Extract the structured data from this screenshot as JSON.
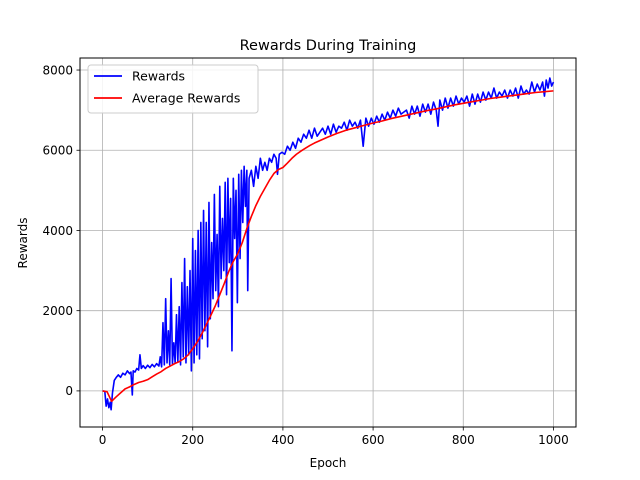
{
  "chart_data": {
    "type": "line",
    "title": "Rewards During Training",
    "xlabel": "Epoch",
    "ylabel": "Rewards",
    "xlim": [
      -50,
      1050
    ],
    "ylim": [
      -900,
      8300
    ],
    "xticks": [
      0,
      200,
      400,
      600,
      800,
      1000
    ],
    "yticks": [
      0,
      2000,
      4000,
      6000,
      8000
    ],
    "grid": true,
    "legend_position": "top-left",
    "series": [
      {
        "name": "Rewards",
        "color": "#0000ff",
        "points": [
          [
            0,
            0
          ],
          [
            5,
            -10
          ],
          [
            8,
            -380
          ],
          [
            11,
            -200
          ],
          [
            14,
            -420
          ],
          [
            17,
            -280
          ],
          [
            19,
            -470
          ],
          [
            22,
            -50
          ],
          [
            26,
            260
          ],
          [
            30,
            330
          ],
          [
            35,
            400
          ],
          [
            40,
            340
          ],
          [
            45,
            440
          ],
          [
            50,
            400
          ],
          [
            55,
            500
          ],
          [
            60,
            430
          ],
          [
            63,
            470
          ],
          [
            66,
            -100
          ],
          [
            68,
            500
          ],
          [
            72,
            470
          ],
          [
            76,
            560
          ],
          [
            80,
            520
          ],
          [
            83,
            900
          ],
          [
            86,
            560
          ],
          [
            90,
            630
          ],
          [
            95,
            560
          ],
          [
            100,
            640
          ],
          [
            105,
            580
          ],
          [
            110,
            660
          ],
          [
            115,
            600
          ],
          [
            120,
            680
          ],
          [
            125,
            620
          ],
          [
            128,
            850
          ],
          [
            131,
            600
          ],
          [
            134,
            1700
          ],
          [
            137,
            650
          ],
          [
            140,
            2300
          ],
          [
            143,
            700
          ],
          [
            146,
            1500
          ],
          [
            149,
            650
          ],
          [
            152,
            2800
          ],
          [
            155,
            680
          ],
          [
            158,
            1200
          ],
          [
            161,
            700
          ],
          [
            164,
            1900
          ],
          [
            167,
            720
          ],
          [
            170,
            2100
          ],
          [
            173,
            650
          ],
          [
            176,
            2700
          ],
          [
            179,
            850
          ],
          [
            182,
            3300
          ],
          [
            185,
            700
          ],
          [
            188,
            2600
          ],
          [
            191,
            900
          ],
          [
            194,
            3000
          ],
          [
            197,
            500
          ],
          [
            200,
            3800
          ],
          [
            203,
            700
          ],
          [
            206,
            3500
          ],
          [
            209,
            900
          ],
          [
            212,
            4000
          ],
          [
            215,
            800
          ],
          [
            218,
            4200
          ],
          [
            221,
            1300
          ],
          [
            224,
            4500
          ],
          [
            227,
            1500
          ],
          [
            230,
            4200
          ],
          [
            233,
            1100
          ],
          [
            236,
            4700
          ],
          [
            239,
            1800
          ],
          [
            242,
            3700
          ],
          [
            245,
            2300
          ],
          [
            248,
            4900
          ],
          [
            251,
            2500
          ],
          [
            254,
            3900
          ],
          [
            257,
            2100
          ],
          [
            260,
            5100
          ],
          [
            263,
            2800
          ],
          [
            266,
            4300
          ],
          [
            269,
            3000
          ],
          [
            272,
            5200
          ],
          [
            275,
            2400
          ],
          [
            278,
            5300
          ],
          [
            281,
            3200
          ],
          [
            284,
            4800
          ],
          [
            287,
            1000
          ],
          [
            290,
            5300
          ],
          [
            293,
            3800
          ],
          [
            296,
            5000
          ],
          [
            299,
            2200
          ],
          [
            302,
            5400
          ],
          [
            305,
            3300
          ],
          [
            308,
            5500
          ],
          [
            311,
            4200
          ],
          [
            314,
            5600
          ],
          [
            317,
            4600
          ],
          [
            320,
            5500
          ],
          [
            322,
            2500
          ],
          [
            325,
            5300
          ],
          [
            330,
            5500
          ],
          [
            335,
            5100
          ],
          [
            340,
            5600
          ],
          [
            345,
            5300
          ],
          [
            350,
            5800
          ],
          [
            355,
            5500
          ],
          [
            360,
            5700
          ],
          [
            365,
            5500
          ],
          [
            370,
            5800
          ],
          [
            375,
            5700
          ],
          [
            380,
            5900
          ],
          [
            385,
            5800
          ],
          [
            388,
            5400
          ],
          [
            392,
            5900
          ],
          [
            398,
            5950
          ],
          [
            404,
            5900
          ],
          [
            410,
            6100
          ],
          [
            416,
            6000
          ],
          [
            422,
            6200
          ],
          [
            428,
            6050
          ],
          [
            434,
            6300
          ],
          [
            440,
            6200
          ],
          [
            446,
            6400
          ],
          [
            452,
            6300
          ],
          [
            458,
            6500
          ],
          [
            464,
            6300
          ],
          [
            470,
            6550
          ],
          [
            476,
            6350
          ],
          [
            482,
            6450
          ],
          [
            488,
            6550
          ],
          [
            494,
            6400
          ],
          [
            500,
            6600
          ],
          [
            506,
            6400
          ],
          [
            512,
            6650
          ],
          [
            518,
            6450
          ],
          [
            524,
            6600
          ],
          [
            530,
            6550
          ],
          [
            536,
            6700
          ],
          [
            542,
            6500
          ],
          [
            548,
            6750
          ],
          [
            554,
            6600
          ],
          [
            560,
            6700
          ],
          [
            566,
            6550
          ],
          [
            572,
            6750
          ],
          [
            578,
            6100
          ],
          [
            584,
            6800
          ],
          [
            590,
            6600
          ],
          [
            596,
            6800
          ],
          [
            602,
            6650
          ],
          [
            608,
            6850
          ],
          [
            614,
            6700
          ],
          [
            620,
            6900
          ],
          [
            626,
            6750
          ],
          [
            632,
            6950
          ],
          [
            638,
            6800
          ],
          [
            644,
            7000
          ],
          [
            650,
            6850
          ],
          [
            656,
            7050
          ],
          [
            662,
            6900
          ],
          [
            668,
            6950
          ],
          [
            674,
            7000
          ],
          [
            680,
            6800
          ],
          [
            686,
            7100
          ],
          [
            692,
            6900
          ],
          [
            698,
            7100
          ],
          [
            704,
            6850
          ],
          [
            710,
            7150
          ],
          [
            716,
            6950
          ],
          [
            722,
            7150
          ],
          [
            728,
            6900
          ],
          [
            734,
            7200
          ],
          [
            740,
            7000
          ],
          [
            744,
            6600
          ],
          [
            748,
            7250
          ],
          [
            754,
            7000
          ],
          [
            760,
            7300
          ],
          [
            766,
            7050
          ],
          [
            772,
            7300
          ],
          [
            778,
            7100
          ],
          [
            784,
            7350
          ],
          [
            790,
            7150
          ],
          [
            796,
            7300
          ],
          [
            802,
            7200
          ],
          [
            808,
            7350
          ],
          [
            814,
            7100
          ],
          [
            820,
            7400
          ],
          [
            826,
            7150
          ],
          [
            832,
            7400
          ],
          [
            838,
            7200
          ],
          [
            844,
            7450
          ],
          [
            850,
            7250
          ],
          [
            856,
            7450
          ],
          [
            862,
            7300
          ],
          [
            868,
            7550
          ],
          [
            874,
            7300
          ],
          [
            880,
            7450
          ],
          [
            886,
            7350
          ],
          [
            892,
            7500
          ],
          [
            898,
            7300
          ],
          [
            904,
            7500
          ],
          [
            910,
            7350
          ],
          [
            916,
            7550
          ],
          [
            922,
            7300
          ],
          [
            928,
            7600
          ],
          [
            934,
            7400
          ],
          [
            940,
            7500
          ],
          [
            946,
            7400
          ],
          [
            952,
            7700
          ],
          [
            958,
            7450
          ],
          [
            964,
            7650
          ],
          [
            970,
            7500
          ],
          [
            976,
            7700
          ],
          [
            980,
            7350
          ],
          [
            984,
            7750
          ],
          [
            988,
            7550
          ],
          [
            992,
            7800
          ],
          [
            996,
            7600
          ],
          [
            1000,
            7700
          ]
        ]
      },
      {
        "name": "Average Rewards",
        "color": "#ff0000",
        "points": [
          [
            0,
            0
          ],
          [
            10,
            -20
          ],
          [
            20,
            -260
          ],
          [
            30,
            -150
          ],
          [
            40,
            -50
          ],
          [
            50,
            50
          ],
          [
            60,
            100
          ],
          [
            70,
            160
          ],
          [
            80,
            210
          ],
          [
            90,
            240
          ],
          [
            100,
            280
          ],
          [
            110,
            350
          ],
          [
            120,
            420
          ],
          [
            130,
            480
          ],
          [
            140,
            560
          ],
          [
            150,
            620
          ],
          [
            160,
            680
          ],
          [
            170,
            730
          ],
          [
            180,
            800
          ],
          [
            190,
            900
          ],
          [
            200,
            1050
          ],
          [
            210,
            1220
          ],
          [
            220,
            1420
          ],
          [
            230,
            1650
          ],
          [
            240,
            1880
          ],
          [
            250,
            2120
          ],
          [
            260,
            2400
          ],
          [
            270,
            2680
          ],
          [
            280,
            2980
          ],
          [
            290,
            3230
          ],
          [
            300,
            3420
          ],
          [
            310,
            3700
          ],
          [
            320,
            4050
          ],
          [
            330,
            4350
          ],
          [
            340,
            4620
          ],
          [
            350,
            4850
          ],
          [
            360,
            5050
          ],
          [
            370,
            5250
          ],
          [
            380,
            5420
          ],
          [
            390,
            5520
          ],
          [
            400,
            5570
          ],
          [
            410,
            5680
          ],
          [
            420,
            5800
          ],
          [
            430,
            5900
          ],
          [
            440,
            5980
          ],
          [
            450,
            6050
          ],
          [
            460,
            6120
          ],
          [
            470,
            6180
          ],
          [
            480,
            6230
          ],
          [
            490,
            6280
          ],
          [
            500,
            6330
          ],
          [
            520,
            6420
          ],
          [
            540,
            6500
          ],
          [
            560,
            6560
          ],
          [
            580,
            6620
          ],
          [
            600,
            6680
          ],
          [
            620,
            6730
          ],
          [
            640,
            6790
          ],
          [
            660,
            6840
          ],
          [
            680,
            6890
          ],
          [
            700,
            6940
          ],
          [
            720,
            6990
          ],
          [
            740,
            7030
          ],
          [
            760,
            7080
          ],
          [
            780,
            7130
          ],
          [
            800,
            7170
          ],
          [
            820,
            7210
          ],
          [
            840,
            7250
          ],
          [
            860,
            7290
          ],
          [
            880,
            7320
          ],
          [
            900,
            7350
          ],
          [
            920,
            7380
          ],
          [
            940,
            7410
          ],
          [
            960,
            7440
          ],
          [
            980,
            7460
          ],
          [
            1000,
            7480
          ]
        ]
      }
    ]
  }
}
